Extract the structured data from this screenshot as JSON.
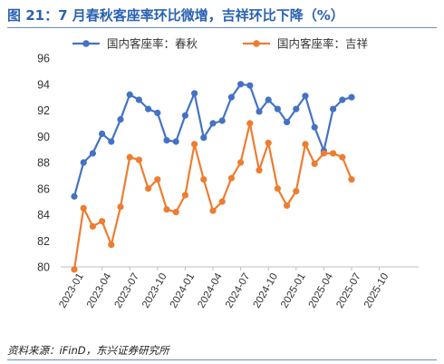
{
  "figure": {
    "title": "图 21：7 月春秋客座率环比微增，吉祥环比下降（%）",
    "source": "资料来源：iFinD，东兴证券研究所"
  },
  "colors": {
    "series1": "#4472c4",
    "series2": "#ed7d31",
    "accent": "#2b62b2"
  },
  "chart_data": {
    "type": "line",
    "x": [
      "2023-01",
      "2023-02",
      "2023-03",
      "2023-04",
      "2023-05",
      "2023-06",
      "2023-07",
      "2023-08",
      "2023-09",
      "2023-10",
      "2023-11",
      "2023-12",
      "2024-01",
      "2024-02",
      "2024-03",
      "2024-04",
      "2024-05",
      "2024-06",
      "2024-07",
      "2024-08",
      "2024-09",
      "2024-10",
      "2024-11",
      "2024-12",
      "2025-01",
      "2025-02",
      "2025-03",
      "2025-04",
      "2025-05",
      "2025-06",
      "2025-07"
    ],
    "xtick_labels": [
      "2023-01",
      "2023-04",
      "2023-07",
      "2023-10",
      "2024-01",
      "2024-04",
      "2024-07",
      "2024-10",
      "2025-01",
      "2025-04",
      "2025-07",
      "2025-10"
    ],
    "ylim": [
      80,
      96
    ],
    "yticks": [
      80,
      82,
      84,
      86,
      88,
      90,
      92,
      94,
      96
    ],
    "grid": false,
    "legend_position": "top",
    "series": [
      {
        "name": "国内客座率：春秋",
        "values": [
          85.4,
          88.0,
          88.7,
          90.2,
          89.6,
          91.3,
          93.2,
          92.8,
          92.1,
          91.8,
          89.7,
          89.6,
          91.6,
          93.3,
          89.9,
          91.0,
          91.2,
          93.0,
          94.0,
          93.9,
          91.9,
          92.8,
          92.1,
          91.1,
          92.1,
          93.1,
          90.7,
          88.9,
          92.1,
          92.8,
          93.0
        ]
      },
      {
        "name": "国内客座率：吉祥",
        "values": [
          79.8,
          84.5,
          83.1,
          83.5,
          81.7,
          84.6,
          88.4,
          88.2,
          86.0,
          86.7,
          84.4,
          84.2,
          85.5,
          89.4,
          86.7,
          84.3,
          85.0,
          86.8,
          88.0,
          91.0,
          87.4,
          89.5,
          86.0,
          84.7,
          85.8,
          89.4,
          87.9,
          88.7,
          88.7,
          88.4,
          86.7
        ]
      }
    ]
  }
}
